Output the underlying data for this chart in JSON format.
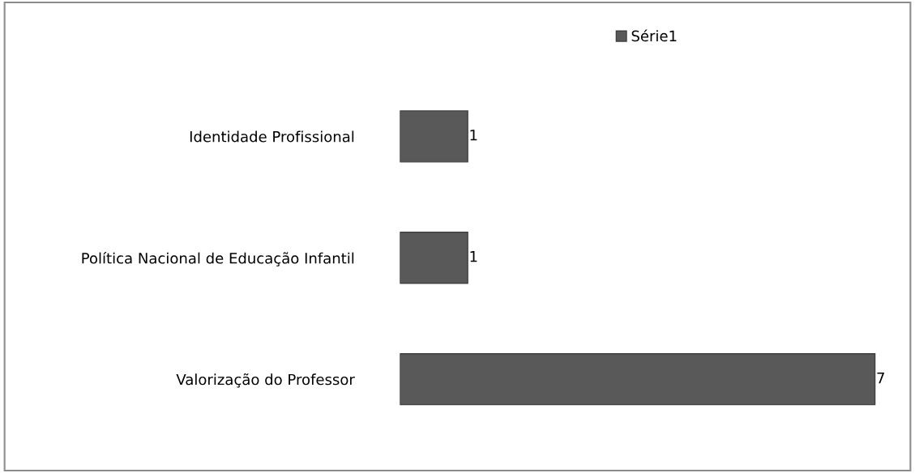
{
  "chart_data": {
    "type": "bar",
    "orientation": "horizontal",
    "categories": [
      "Identidade Profissional",
      "Política Nacional de Educação Infantil",
      "Valorização do Professor"
    ],
    "series": [
      {
        "name": "Série1",
        "color": "#595959",
        "values": [
          1,
          1,
          7
        ]
      }
    ],
    "data_labels": true,
    "legend": "top",
    "grid": false,
    "tick_labels": "y"
  }
}
